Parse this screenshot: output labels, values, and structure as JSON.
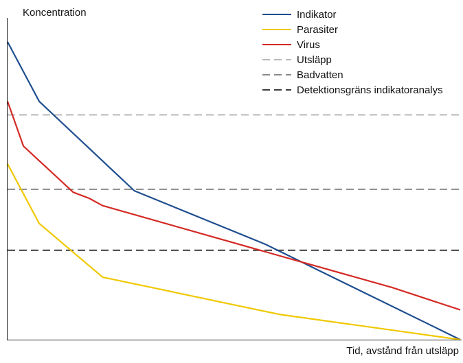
{
  "chart_data": {
    "type": "line",
    "xlabel": "Tid, avstånd från utsläpp",
    "ylabel": "Koncentration",
    "xlim": [
      0,
      100
    ],
    "ylim": [
      0,
      100
    ],
    "axis_ticks": false,
    "grid": false,
    "legend_position": "top-right",
    "series": [
      {
        "name": "Indikator",
        "color": "#1f4e8f",
        "style": "solid",
        "points": [
          [
            0,
            100
          ],
          [
            7,
            80
          ],
          [
            28,
            50
          ],
          [
            57,
            32
          ],
          [
            100,
            0
          ]
        ]
      },
      {
        "name": "Parasiter",
        "color": "#f0c800",
        "style": "solid",
        "points": [
          [
            0,
            59
          ],
          [
            7,
            39
          ],
          [
            21,
            21
          ],
          [
            60,
            8.5
          ],
          [
            100,
            0
          ]
        ]
      },
      {
        "name": "Virus",
        "color": "#d42a24",
        "style": "solid",
        "points": [
          [
            0,
            80
          ],
          [
            3.5,
            65
          ],
          [
            14.5,
            49.5
          ],
          [
            18,
            47.5
          ],
          [
            21,
            45
          ],
          [
            57,
            29.5
          ],
          [
            85,
            17.5
          ],
          [
            100,
            10
          ]
        ]
      }
    ],
    "reference_lines": [
      {
        "name": "Utsläpp",
        "y": 75.5,
        "color": "#b9b9b9",
        "style": "dashed"
      },
      {
        "name": "Badvatten",
        "y": 50.5,
        "color": "#8a8a8a",
        "style": "dashed"
      },
      {
        "name": "Detektionsgräns indikatoranalys",
        "y": 30,
        "color": "#3c3c3c",
        "style": "dashed"
      }
    ]
  }
}
